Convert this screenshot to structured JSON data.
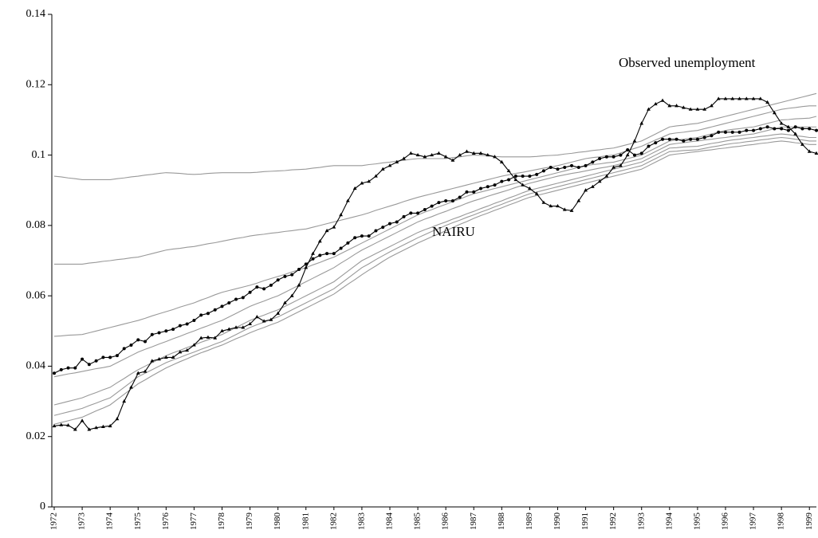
{
  "chart_data": {
    "type": "line",
    "categories": [
      "1972",
      null,
      null,
      null,
      "1973",
      null,
      null,
      null,
      "1974",
      null,
      null,
      null,
      "1975",
      null,
      null,
      null,
      "1976",
      null,
      null,
      null,
      "1977",
      null,
      null,
      null,
      "1978",
      null,
      null,
      null,
      "1979",
      null,
      null,
      null,
      "1980",
      null,
      null,
      null,
      "1981",
      null,
      null,
      null,
      "1982",
      null,
      null,
      null,
      "1983",
      null,
      null,
      null,
      "1984",
      null,
      null,
      null,
      "1985",
      null,
      null,
      null,
      "1986",
      null,
      null,
      null,
      "1987",
      null,
      null,
      null,
      "1988",
      null,
      null,
      null,
      "1989",
      null,
      null,
      null,
      "1990",
      null,
      null,
      null,
      "1991",
      null,
      null,
      null,
      "1992",
      null,
      null,
      null,
      "1993",
      null,
      null,
      null,
      "1994",
      null,
      null,
      null,
      "1995",
      null,
      null,
      null,
      "1996",
      null,
      null,
      null,
      "1997",
      null,
      null,
      null,
      "1998",
      null,
      null,
      null,
      "1999",
      null
    ],
    "ylim": [
      0,
      0.14
    ],
    "yticks": [
      0,
      0.02,
      0.04,
      0.06,
      0.08,
      0.1,
      0.12,
      0.14
    ],
    "series": [
      {
        "name": "Observed unemployment",
        "color": "#000000",
        "marker": "triangle",
        "values": [
          0.023,
          0.0233,
          0.0232,
          0.022,
          0.0245,
          0.022,
          0.0225,
          0.0228,
          0.023,
          0.025,
          0.03,
          0.034,
          0.038,
          0.0385,
          0.0415,
          0.042,
          0.0425,
          0.0425,
          0.044,
          0.0445,
          0.046,
          0.048,
          0.0482,
          0.048,
          0.05,
          0.0505,
          0.051,
          0.051,
          0.052,
          0.054,
          0.0528,
          0.0532,
          0.055,
          0.058,
          0.06,
          0.063,
          0.068,
          0.072,
          0.0755,
          0.0785,
          0.0795,
          0.083,
          0.087,
          0.0905,
          0.092,
          0.0925,
          0.094,
          0.096,
          0.097,
          0.098,
          0.099,
          0.1005,
          0.1,
          0.0995,
          0.1,
          0.1005,
          0.0995,
          0.0985,
          0.1,
          0.101,
          0.1005,
          0.1005,
          0.1,
          0.0995,
          0.098,
          0.0955,
          0.093,
          0.0915,
          0.0905,
          0.089,
          0.0865,
          0.0855,
          0.0855,
          0.0845,
          0.0842,
          0.087,
          0.09,
          0.091,
          0.0925,
          0.094,
          0.0965,
          0.097,
          0.1,
          0.104,
          0.109,
          0.113,
          0.1145,
          0.1155,
          0.114,
          0.114,
          0.1135,
          0.113,
          0.113,
          0.113,
          0.114,
          0.116,
          0.116,
          0.116,
          0.116,
          0.116,
          0.116,
          0.116,
          0.115,
          0.112,
          0.109,
          0.108,
          0.106,
          0.103,
          0.101,
          0.1005
        ]
      },
      {
        "name": "NAIRU",
        "color": "#000000",
        "marker": "circle",
        "values": [
          0.038,
          0.039,
          0.0395,
          0.0395,
          0.042,
          0.0405,
          0.0415,
          0.0425,
          0.0425,
          0.043,
          0.045,
          0.046,
          0.0475,
          0.047,
          0.049,
          0.0495,
          0.05,
          0.0505,
          0.0515,
          0.052,
          0.053,
          0.0545,
          0.055,
          0.056,
          0.057,
          0.058,
          0.059,
          0.0595,
          0.061,
          0.0625,
          0.062,
          0.063,
          0.0645,
          0.0655,
          0.066,
          0.0675,
          0.069,
          0.0705,
          0.0715,
          0.072,
          0.072,
          0.0735,
          0.075,
          0.0765,
          0.077,
          0.077,
          0.0785,
          0.0795,
          0.0805,
          0.081,
          0.0825,
          0.0835,
          0.0835,
          0.0845,
          0.0855,
          0.0865,
          0.087,
          0.087,
          0.088,
          0.0895,
          0.0895,
          0.0905,
          0.091,
          0.0915,
          0.0925,
          0.093,
          0.094,
          0.094,
          0.094,
          0.0945,
          0.0955,
          0.0965,
          0.096,
          0.0965,
          0.097,
          0.0965,
          0.097,
          0.098,
          0.099,
          0.0995,
          0.0995,
          0.1,
          0.1015,
          0.1,
          0.1005,
          0.1025,
          0.1035,
          0.1045,
          0.1045,
          0.1045,
          0.104,
          0.1045,
          0.1045,
          0.105,
          0.1055,
          0.1065,
          0.1065,
          0.1065,
          0.1065,
          0.107,
          0.107,
          0.1075,
          0.108,
          0.1075,
          0.1075,
          0.107,
          0.108,
          0.1075,
          0.1075,
          0.107
        ]
      },
      {
        "color": "#999999",
        "values": [
          0.094,
          0.0938,
          0.0935,
          0.0933,
          0.093,
          0.093,
          0.093,
          0.093,
          0.093,
          0.0933,
          0.0935,
          0.0938,
          0.094,
          0.0943,
          0.0945,
          0.0948,
          0.095,
          0.0949,
          0.0948,
          0.0946,
          0.0945,
          0.0946,
          0.0948,
          0.0949,
          0.095,
          0.095,
          0.095,
          0.095,
          0.095,
          0.0951,
          0.0953,
          0.0954,
          0.0955,
          0.0956,
          0.0958,
          0.0959,
          0.096,
          0.0963,
          0.0965,
          0.0968,
          0.097,
          0.097,
          0.097,
          0.097,
          0.097,
          0.0973,
          0.0975,
          0.0978,
          0.098,
          0.0983,
          0.0985,
          0.0988,
          0.099,
          0.099,
          0.099,
          0.099,
          0.099,
          0.0993,
          0.0995,
          0.0998,
          0.1,
          0.0999,
          0.0998,
          0.0996,
          0.0995,
          0.0995,
          0.0995,
          0.0995,
          0.0995,
          0.0996,
          0.0998,
          0.0999,
          0.1,
          0.1003,
          0.1005,
          0.1008,
          0.101,
          0.1013,
          0.1015,
          0.1018,
          0.102,
          0.1025,
          0.103,
          0.1035,
          0.104,
          0.105,
          0.106,
          0.107,
          0.108,
          0.1083,
          0.1085,
          0.1088,
          0.109,
          0.1095,
          0.11,
          0.1105,
          0.111,
          0.1115,
          0.112,
          0.1125,
          0.113,
          0.1135,
          0.114,
          0.1145,
          0.115,
          0.1155,
          0.116,
          0.1165,
          0.117,
          0.1175
        ]
      },
      {
        "color": "#999999",
        "values": [
          0.069,
          0.069,
          0.069,
          0.069,
          0.069,
          0.0693,
          0.0695,
          0.0698,
          0.07,
          0.0703,
          0.0705,
          0.0708,
          0.071,
          0.0715,
          0.072,
          0.0725,
          0.073,
          0.0733,
          0.0735,
          0.0738,
          0.074,
          0.0744,
          0.0748,
          0.0751,
          0.0755,
          0.0759,
          0.0763,
          0.0766,
          0.077,
          0.0773,
          0.0775,
          0.0778,
          0.078,
          0.0783,
          0.0785,
          0.0788,
          0.079,
          0.0795,
          0.08,
          0.0805,
          0.081,
          0.0815,
          0.082,
          0.0825,
          0.083,
          0.0836,
          0.0843,
          0.0849,
          0.0855,
          0.0861,
          0.0868,
          0.0874,
          0.088,
          0.0885,
          0.089,
          0.0895,
          0.09,
          0.0905,
          0.091,
          0.0915,
          0.092,
          0.0925,
          0.093,
          0.0935,
          0.094,
          0.0944,
          0.0948,
          0.0951,
          0.0955,
          0.0959,
          0.0963,
          0.0966,
          0.097,
          0.0975,
          0.098,
          0.0985,
          0.099,
          0.0993,
          0.0995,
          0.0998,
          0.1,
          0.1006,
          0.1013,
          0.1019,
          0.1025,
          0.1034,
          0.1043,
          0.1051,
          0.106,
          0.1063,
          0.1065,
          0.1068,
          0.107,
          0.1075,
          0.108,
          0.1085,
          0.109,
          0.1095,
          0.11,
          0.1105,
          0.111,
          0.1115,
          0.112,
          0.1125,
          0.113,
          0.1133,
          0.1135,
          0.1138,
          0.114,
          0.114
        ]
      },
      {
        "color": "#999999",
        "values": [
          0.0485,
          0.0486,
          0.0488,
          0.0489,
          0.049,
          0.0495,
          0.05,
          0.0505,
          0.051,
          0.0515,
          0.052,
          0.0525,
          0.053,
          0.0536,
          0.0543,
          0.0549,
          0.0555,
          0.0561,
          0.0568,
          0.0574,
          0.058,
          0.0588,
          0.0595,
          0.0603,
          0.061,
          0.0615,
          0.062,
          0.0625,
          0.063,
          0.0636,
          0.0643,
          0.0649,
          0.0655,
          0.0661,
          0.0668,
          0.0674,
          0.068,
          0.0688,
          0.0695,
          0.0703,
          0.071,
          0.072,
          0.073,
          0.074,
          0.075,
          0.076,
          0.077,
          0.078,
          0.079,
          0.08,
          0.081,
          0.082,
          0.083,
          0.0838,
          0.0845,
          0.0853,
          0.086,
          0.0868,
          0.0875,
          0.0883,
          0.089,
          0.0895,
          0.09,
          0.0905,
          0.091,
          0.0915,
          0.092,
          0.0925,
          0.093,
          0.0935,
          0.094,
          0.0945,
          0.095,
          0.0955,
          0.096,
          0.0965,
          0.097,
          0.0973,
          0.0975,
          0.0978,
          0.098,
          0.0985,
          0.099,
          0.0995,
          0.1,
          0.101,
          0.102,
          0.103,
          0.104,
          0.1043,
          0.1045,
          0.1048,
          0.105,
          0.1055,
          0.106,
          0.1065,
          0.107,
          0.1073,
          0.1075,
          0.1078,
          0.108,
          0.1085,
          0.109,
          0.1095,
          0.11,
          0.1101,
          0.1103,
          0.1104,
          0.1105,
          0.111
        ]
      },
      {
        "color": "#999999",
        "values": [
          0.037,
          0.0374,
          0.0378,
          0.0381,
          0.0385,
          0.0389,
          0.0393,
          0.0396,
          0.04,
          0.041,
          0.042,
          0.043,
          0.044,
          0.0448,
          0.0455,
          0.0463,
          0.047,
          0.0478,
          0.0485,
          0.0493,
          0.05,
          0.0508,
          0.0515,
          0.0523,
          0.053,
          0.054,
          0.055,
          0.056,
          0.057,
          0.0578,
          0.0585,
          0.0593,
          0.06,
          0.061,
          0.062,
          0.063,
          0.064,
          0.065,
          0.066,
          0.067,
          0.068,
          0.0693,
          0.0705,
          0.0718,
          0.073,
          0.074,
          0.075,
          0.076,
          0.077,
          0.078,
          0.079,
          0.08,
          0.081,
          0.0818,
          0.0825,
          0.0833,
          0.084,
          0.0848,
          0.0855,
          0.0863,
          0.087,
          0.0876,
          0.0883,
          0.0889,
          0.0895,
          0.0901,
          0.0908,
          0.0914,
          0.092,
          0.0925,
          0.093,
          0.0935,
          0.094,
          0.0944,
          0.0948,
          0.0951,
          0.0955,
          0.0959,
          0.0963,
          0.0966,
          0.097,
          0.0975,
          0.098,
          0.0985,
          0.099,
          0.1,
          0.101,
          0.102,
          0.103,
          0.1033,
          0.1035,
          0.1038,
          0.104,
          0.1043,
          0.1045,
          0.1048,
          0.105,
          0.1053,
          0.1055,
          0.1058,
          0.106,
          0.1065,
          0.107,
          0.1075,
          0.108,
          0.108,
          0.108,
          0.108,
          0.108,
          0.108
        ]
      },
      {
        "color": "#999999",
        "values": [
          0.029,
          0.0295,
          0.03,
          0.0305,
          0.031,
          0.0318,
          0.0325,
          0.0333,
          0.034,
          0.0353,
          0.0365,
          0.0378,
          0.039,
          0.04,
          0.041,
          0.042,
          0.043,
          0.0438,
          0.0445,
          0.0453,
          0.046,
          0.0468,
          0.0475,
          0.0483,
          0.049,
          0.05,
          0.051,
          0.052,
          0.053,
          0.0538,
          0.0545,
          0.0553,
          0.056,
          0.057,
          0.058,
          0.059,
          0.06,
          0.061,
          0.062,
          0.063,
          0.064,
          0.0655,
          0.067,
          0.0685,
          0.07,
          0.071,
          0.072,
          0.073,
          0.074,
          0.075,
          0.076,
          0.077,
          0.078,
          0.0788,
          0.0795,
          0.0803,
          0.081,
          0.0818,
          0.0825,
          0.0833,
          0.084,
          0.0848,
          0.0855,
          0.0863,
          0.087,
          0.0878,
          0.0885,
          0.0893,
          0.09,
          0.0905,
          0.091,
          0.0915,
          0.092,
          0.0925,
          0.093,
          0.0935,
          0.094,
          0.0945,
          0.095,
          0.0955,
          0.096,
          0.0965,
          0.097,
          0.0975,
          0.098,
          0.099,
          0.1,
          0.101,
          0.102,
          0.1021,
          0.1023,
          0.1024,
          0.1025,
          0.1029,
          0.1033,
          0.1036,
          0.104,
          0.1043,
          0.1045,
          0.1048,
          0.105,
          0.1053,
          0.1055,
          0.1058,
          0.106,
          0.1058,
          0.1055,
          0.1053,
          0.105,
          0.105
        ]
      },
      {
        "color": "#999999",
        "values": [
          0.026,
          0.0265,
          0.027,
          0.0275,
          0.028,
          0.0288,
          0.0295,
          0.0303,
          0.031,
          0.0325,
          0.034,
          0.0355,
          0.037,
          0.038,
          0.039,
          0.04,
          0.041,
          0.0418,
          0.0425,
          0.0433,
          0.044,
          0.0448,
          0.0455,
          0.0463,
          0.047,
          0.048,
          0.049,
          0.05,
          0.051,
          0.0518,
          0.0525,
          0.0533,
          0.054,
          0.055,
          0.056,
          0.057,
          0.058,
          0.059,
          0.06,
          0.061,
          0.062,
          0.0635,
          0.065,
          0.0665,
          0.068,
          0.0691,
          0.0703,
          0.0714,
          0.0725,
          0.0735,
          0.0745,
          0.0755,
          0.0765,
          0.0774,
          0.0783,
          0.0791,
          0.08,
          0.0808,
          0.0815,
          0.0823,
          0.083,
          0.0838,
          0.0845,
          0.0853,
          0.086,
          0.0868,
          0.0875,
          0.0883,
          0.089,
          0.0895,
          0.09,
          0.0905,
          0.091,
          0.0915,
          0.092,
          0.0925,
          0.093,
          0.0935,
          0.094,
          0.0945,
          0.095,
          0.0955,
          0.096,
          0.0965,
          0.097,
          0.098,
          0.099,
          0.1,
          0.101,
          0.1011,
          0.1013,
          0.1014,
          0.1015,
          0.1019,
          0.1023,
          0.1026,
          0.103,
          0.1033,
          0.1035,
          0.1038,
          0.104,
          0.1043,
          0.1045,
          0.1048,
          0.105,
          0.1048,
          0.1045,
          0.1043,
          0.104,
          0.104
        ]
      },
      {
        "color": "#999999",
        "values": [
          0.0235,
          0.024,
          0.0245,
          0.025,
          0.0255,
          0.0264,
          0.0273,
          0.0281,
          0.029,
          0.0305,
          0.032,
          0.0335,
          0.035,
          0.0361,
          0.0373,
          0.0384,
          0.0395,
          0.0404,
          0.0413,
          0.0421,
          0.043,
          0.0438,
          0.0445,
          0.0453,
          0.046,
          0.0469,
          0.0478,
          0.0486,
          0.0495,
          0.0503,
          0.051,
          0.0518,
          0.0525,
          0.0535,
          0.0545,
          0.0555,
          0.0565,
          0.0575,
          0.0585,
          0.0595,
          0.0605,
          0.0619,
          0.0633,
          0.0646,
          0.066,
          0.0673,
          0.0685,
          0.0698,
          0.071,
          0.072,
          0.073,
          0.074,
          0.075,
          0.0759,
          0.0768,
          0.0776,
          0.0785,
          0.0794,
          0.0803,
          0.0811,
          0.082,
          0.0828,
          0.0835,
          0.0843,
          0.085,
          0.0858,
          0.0865,
          0.0873,
          0.088,
          0.0885,
          0.089,
          0.0895,
          0.09,
          0.0905,
          0.091,
          0.0915,
          0.092,
          0.0925,
          0.093,
          0.0935,
          0.094,
          0.0945,
          0.095,
          0.0955,
          0.096,
          0.097,
          0.098,
          0.099,
          0.1,
          0.1003,
          0.1005,
          0.1008,
          0.101,
          0.1013,
          0.1015,
          0.1018,
          0.102,
          0.1023,
          0.1025,
          0.1028,
          0.103,
          0.1033,
          0.1035,
          0.1038,
          0.104,
          0.1038,
          0.1035,
          0.1033,
          0.103,
          0.103
        ]
      }
    ]
  }
}
